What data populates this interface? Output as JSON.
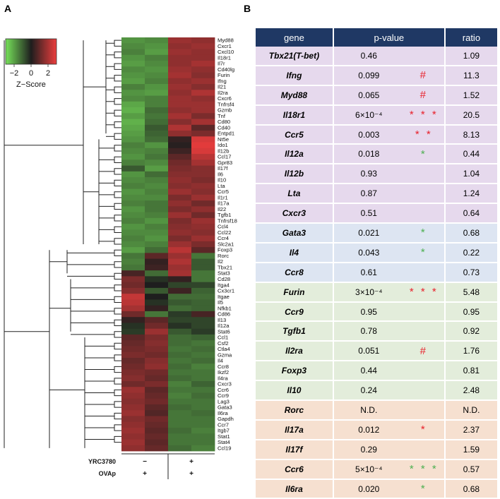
{
  "panel_a": {
    "letter": "A"
  },
  "panel_b": {
    "letter": "B"
  },
  "colorkey": {
    "label": "Z−Score",
    "ticks": [
      "−2",
      "0",
      "2"
    ],
    "range": [
      -3,
      3
    ]
  },
  "conditions": {
    "rows": [
      {
        "label": "YRC3780",
        "values": [
          "−",
          "+"
        ]
      },
      {
        "label": "OVAp",
        "values": [
          "+",
          "+"
        ]
      }
    ]
  },
  "chart_data": {
    "type": "heatmap",
    "title": "",
    "colorscale": {
      "low": "#77e25a",
      "mid": "#1e1e1e",
      "high": "#ec3d3d",
      "label": "Z−Score"
    },
    "columns": 4,
    "genes": [
      "Myd88",
      "Cxcr1",
      "Cxcl10",
      "Il18r1",
      "Il7r",
      "Cd40lg",
      "Furin",
      "Ifng",
      "Il21",
      "Il2ra",
      "Cxcr6",
      "Tnfrsf4",
      "Gzmb",
      "Tnf",
      "Cd80",
      "Cd40",
      "Entpd1",
      "Nt5e",
      "Ido1",
      "Il12b",
      "Ccl17",
      "Gpr83",
      "Il17f",
      "Il6",
      "Il10",
      "Lta",
      "Ccr5",
      "Il1r1",
      "Il17a",
      "Il22",
      "Tgfb1",
      "Tnfrsf18",
      "Ccl4",
      "Ccl22",
      "Ccr4",
      "Slc2a1",
      "Foxp3",
      "Rorc",
      "Il2",
      "Tbx21",
      "Stat3",
      "Cd28",
      "Itga4",
      "Cx3cr1",
      "Itgae",
      "Il5",
      "Nfkb1",
      "Cd86",
      "Il13",
      "Il12a",
      "Stat6",
      "Ccl1",
      "Csf2",
      "Ctla4",
      "Gzma",
      "Il4",
      "Ccr8",
      "Ikzf2",
      "Il4ra",
      "Cxcr3",
      "Ccr6",
      "Ccr9",
      "Lag3",
      "Gata3",
      "Il6ra",
      "Gapdh",
      "Ccr7",
      "Itgb7",
      "Stat1",
      "Stat4",
      "Ccl19"
    ],
    "values": [
      [
        -1.2,
        -1.1,
        1.2,
        1.1
      ],
      [
        -1.1,
        -1.2,
        1.1,
        1.2
      ],
      [
        -1.0,
        -1.3,
        1.2,
        1.1
      ],
      [
        -1.2,
        -1.0,
        1.1,
        1.1
      ],
      [
        -1.3,
        -1.1,
        1.1,
        1.3
      ],
      [
        -1.1,
        -1.2,
        1.2,
        1.1
      ],
      [
        -1.2,
        -1.1,
        1.3,
        1.0
      ],
      [
        -1.3,
        -1.0,
        1.1,
        1.2
      ],
      [
        -1.0,
        -1.2,
        1.2,
        1.0
      ],
      [
        -1.2,
        -1.3,
        1.1,
        1.4
      ],
      [
        -1.1,
        -1.0,
        1.2,
        1.1
      ],
      [
        -1.4,
        -1.0,
        1.2,
        1.2
      ],
      [
        -1.5,
        -0.8,
        1.1,
        1.2
      ],
      [
        -1.3,
        -0.9,
        1.3,
        0.9
      ],
      [
        -1.5,
        -0.8,
        1.0,
        1.3
      ],
      [
        -1.4,
        -0.6,
        1.4,
        0.6
      ],
      [
        -1.3,
        -0.7,
        1.1,
        0.9
      ],
      [
        -1.2,
        -0.8,
        0.2,
        1.8
      ],
      [
        -1.0,
        -1.2,
        0.1,
        1.9
      ],
      [
        -1.1,
        -1.0,
        0.3,
        1.8
      ],
      [
        -1.2,
        -0.9,
        0.6,
        1.5
      ],
      [
        -1.0,
        -1.1,
        0.8,
        1.3
      ],
      [
        -0.6,
        -1.3,
        0.9,
        1.0
      ],
      [
        -1.2,
        -0.8,
        1.0,
        1.0
      ],
      [
        -1.1,
        -1.0,
        1.1,
        0.9
      ],
      [
        -1.0,
        -1.1,
        1.0,
        1.1
      ],
      [
        -1.2,
        -1.0,
        1.2,
        1.0
      ],
      [
        -1.1,
        -1.1,
        0.9,
        1.2
      ],
      [
        -1.0,
        -0.9,
        1.1,
        0.8
      ],
      [
        -1.2,
        -0.9,
        0.9,
        1.1
      ],
      [
        -1.1,
        -1.0,
        1.2,
        0.8
      ],
      [
        -1.0,
        -1.2,
        0.9,
        1.2
      ],
      [
        -1.2,
        -1.0,
        1.0,
        1.1
      ],
      [
        -1.1,
        -1.1,
        1.1,
        1.0
      ],
      [
        -1.0,
        -1.2,
        0.9,
        1.2
      ],
      [
        -1.1,
        -1.0,
        1.2,
        0.9
      ],
      [
        -1.3,
        -0.8,
        1.5,
        0.6
      ],
      [
        -0.9,
        0.6,
        1.2,
        -0.9
      ],
      [
        -1.0,
        0.2,
        1.4,
        -0.6
      ],
      [
        -0.9,
        0.3,
        1.2,
        -0.6
      ],
      [
        0.4,
        -0.8,
        1.3,
        -0.9
      ],
      [
        0.9,
        -0.2,
        0.2,
        -0.9
      ],
      [
        0.8,
        0.0,
        -0.4,
        -0.4
      ],
      [
        1.0,
        -0.6,
        0.3,
        -0.7
      ],
      [
        1.6,
        0.0,
        -0.8,
        -0.8
      ],
      [
        1.5,
        -0.2,
        -0.6,
        -0.7
      ],
      [
        1.3,
        0.2,
        -0.8,
        -0.7
      ],
      [
        0.8,
        -0.9,
        -0.3,
        0.4
      ],
      [
        0.2,
        0.6,
        -0.4,
        -0.4
      ],
      [
        -0.2,
        0.8,
        -0.2,
        -0.4
      ],
      [
        -0.3,
        1.2,
        -0.6,
        -0.3
      ],
      [
        0.6,
        0.9,
        -0.8,
        -0.7
      ],
      [
        0.7,
        1.0,
        -0.8,
        -0.9
      ],
      [
        0.8,
        0.9,
        -0.9,
        -0.8
      ],
      [
        0.9,
        0.8,
        -0.8,
        -0.9
      ],
      [
        0.7,
        1.0,
        -0.9,
        -0.8
      ],
      [
        0.8,
        1.1,
        -0.8,
        -1.0
      ],
      [
        0.9,
        0.8,
        -0.9,
        -0.9
      ],
      [
        1.0,
        0.7,
        -0.8,
        -0.9
      ],
      [
        0.8,
        0.9,
        -1.0,
        -0.7
      ],
      [
        1.2,
        0.6,
        -0.9,
        -0.9
      ],
      [
        1.1,
        0.7,
        -1.0,
        -0.8
      ],
      [
        1.0,
        0.8,
        -0.9,
        -0.9
      ],
      [
        1.1,
        0.6,
        -0.8,
        -0.9
      ],
      [
        1.2,
        0.5,
        -0.9,
        -0.8
      ],
      [
        1.0,
        0.8,
        -0.9,
        -0.9
      ],
      [
        1.1,
        0.7,
        -0.9,
        -0.9
      ],
      [
        1.2,
        0.6,
        -0.8,
        -1.0
      ],
      [
        1.1,
        0.7,
        -0.9,
        -0.9
      ],
      [
        1.2,
        0.6,
        -0.9,
        -0.9
      ],
      [
        1.1,
        0.7,
        -0.8,
        -1.0
      ]
    ]
  },
  "table": {
    "headers": {
      "gene": "gene",
      "pvalue": "p-value",
      "ratio": "ratio"
    },
    "rows": [
      {
        "gene": "Tbx21(T-bet)",
        "p": "0.46",
        "sig": "",
        "ratio": "1.09",
        "group": "th1",
        "sigcolor": ""
      },
      {
        "gene": "Ifng",
        "p": "0.099",
        "sig": "#",
        "ratio": "11.3",
        "group": "th1",
        "sigcolor": "red"
      },
      {
        "gene": "Myd88",
        "p": "0.065",
        "sig": "#",
        "ratio": "1.52",
        "group": "th1",
        "sigcolor": "red"
      },
      {
        "gene": "Il18r1",
        "p": "6×10⁻⁴",
        "sig": "* * *",
        "ratio": "20.5",
        "group": "th1",
        "sigcolor": "red"
      },
      {
        "gene": "Ccr5",
        "p": "0.003",
        "sig": "* *",
        "ratio": "8.13",
        "group": "th1",
        "sigcolor": "red"
      },
      {
        "gene": "Il12a",
        "p": "0.018",
        "sig": "*",
        "ratio": "0.44",
        "group": "th1",
        "sigcolor": "green"
      },
      {
        "gene": "Il12b",
        "p": "0.93",
        "sig": "",
        "ratio": "1.04",
        "group": "th1",
        "sigcolor": ""
      },
      {
        "gene": "Lta",
        "p": "0.87",
        "sig": "",
        "ratio": "1.24",
        "group": "th1",
        "sigcolor": ""
      },
      {
        "gene": "Cxcr3",
        "p": "0.51",
        "sig": "",
        "ratio": "0.64",
        "group": "th1",
        "sigcolor": ""
      },
      {
        "gene": "Gata3",
        "p": "0.021",
        "sig": "*",
        "ratio": "0.68",
        "group": "th2",
        "sigcolor": "green"
      },
      {
        "gene": "Il4",
        "p": "0.043",
        "sig": "*",
        "ratio": "0.22",
        "group": "th2",
        "sigcolor": "green"
      },
      {
        "gene": "Ccr8",
        "p": "0.61",
        "sig": "",
        "ratio": "0.73",
        "group": "th2",
        "sigcolor": ""
      },
      {
        "gene": "Furin",
        "p": "3×10⁻⁴",
        "sig": "* * *",
        "ratio": "5.48",
        "group": "treg",
        "sigcolor": "red"
      },
      {
        "gene": "Ccr9",
        "p": "0.95",
        "sig": "",
        "ratio": "0.95",
        "group": "treg",
        "sigcolor": ""
      },
      {
        "gene": "Tgfb1",
        "p": "0.78",
        "sig": "",
        "ratio": "0.92",
        "group": "treg",
        "sigcolor": ""
      },
      {
        "gene": "Il2ra",
        "p": "0.051",
        "sig": "#",
        "ratio": "1.76",
        "group": "treg",
        "sigcolor": "red"
      },
      {
        "gene": "Foxp3",
        "p": "0.44",
        "sig": "",
        "ratio": "0.81",
        "group": "treg",
        "sigcolor": ""
      },
      {
        "gene": "Il10",
        "p": "0.24",
        "sig": "",
        "ratio": "2.48",
        "group": "treg",
        "sigcolor": ""
      },
      {
        "gene": "Rorc",
        "p": "N.D.",
        "sig": "",
        "ratio": "N.D.",
        "group": "th17",
        "sigcolor": ""
      },
      {
        "gene": "Il17a",
        "p": "0.012",
        "sig": "*",
        "ratio": "2.37",
        "group": "th17",
        "sigcolor": "red"
      },
      {
        "gene": "Il17f",
        "p": "0.29",
        "sig": "",
        "ratio": "1.59",
        "group": "th17",
        "sigcolor": ""
      },
      {
        "gene": "Ccr6",
        "p": "5×10⁻⁴",
        "sig": "* * *",
        "ratio": "0.57",
        "group": "th17",
        "sigcolor": "green"
      },
      {
        "gene": "Il6ra",
        "p": "0.020",
        "sig": "*",
        "ratio": "0.68",
        "group": "th17",
        "sigcolor": "green"
      }
    ]
  }
}
